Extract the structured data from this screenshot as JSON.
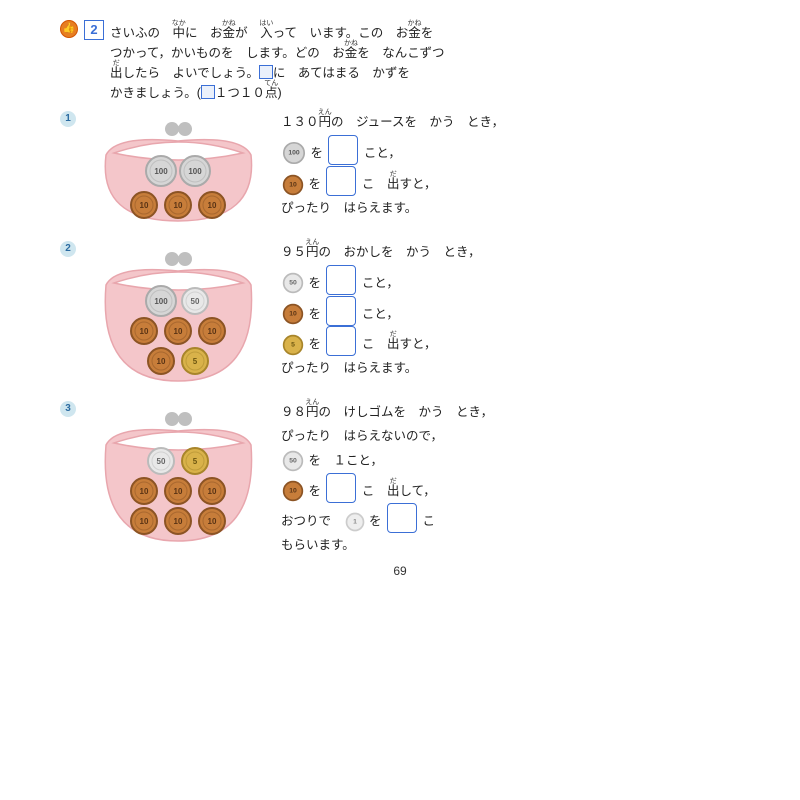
{
  "question_number": "2",
  "intro_lines": [
    "さいふの　中に　お金が　入って　います。この　お金を",
    "つかって，かいものを　します。どの　お金を　なんこずつ",
    "出したら　よいでしょう。□に　あてはまる　かずを",
    "かきましょう。(□１つ１０点)"
  ],
  "ruby": {
    "naka": "なか",
    "kane": "かね",
    "hai": "はい",
    "da": "だ",
    "en": "えん",
    "ten": "てん"
  },
  "colors": {
    "accent": "#3b6fd6",
    "purse": "#f4c6ca",
    "purse_dark": "#e8a6ad",
    "clasp": "#bfbfbf",
    "c100_bg": "#d6d6d6",
    "c100_b": "#aaaaaa",
    "c50_bg": "#e8e8e8",
    "c50_b": "#bbbbbb",
    "c10_bg": "#c77d3a",
    "c10_b": "#8c5424",
    "c5_bg": "#d9b24a",
    "c5_b": "#a8852a",
    "c1_bg": "#eeeeee",
    "c1_b": "#cccccc",
    "badge_bg": "#cfe6ef",
    "badge_fg": "#2a6aa0",
    "thumb": "#e67e22"
  },
  "problems": [
    {
      "num": "1",
      "purse_coins_top": [
        "100",
        "100"
      ],
      "purse_coins_bot": [
        "10",
        "10",
        "10"
      ],
      "title": "１３０円の　ジュースを　かう　とき，",
      "lines": [
        {
          "coin": "100",
          "pre": "",
          "mid": "を",
          "box": true,
          "post": "こと，"
        },
        {
          "coin": "10",
          "pre": "",
          "mid": "を",
          "box": true,
          "post": "こ　出すと，"
        },
        {
          "plain": "ぴったり　はらえます。"
        }
      ]
    },
    {
      "num": "2",
      "purse_coins_top": [
        "100",
        "50"
      ],
      "purse_coins_mid": [
        "10",
        "10",
        "10"
      ],
      "purse_coins_bot": [
        "10",
        "5"
      ],
      "title": "９５円の　おかしを　かう　とき，",
      "lines": [
        {
          "coin": "50",
          "mid": "を",
          "box": true,
          "post": "こと，"
        },
        {
          "coin": "10",
          "mid": "を",
          "box": true,
          "post": "こと，"
        },
        {
          "coin": "5",
          "mid": "を",
          "box": true,
          "post": "こ　出すと，"
        },
        {
          "plain": "ぴったり　はらえます。"
        }
      ]
    },
    {
      "num": "3",
      "purse_coins_top": [
        "50",
        "5"
      ],
      "purse_coins_mid": [
        "10",
        "10",
        "10"
      ],
      "purse_coins_bot": [
        "10",
        "10",
        "10"
      ],
      "title": "９８円の　けしゴムを　かう　とき，",
      "pre_line": "ぴったり　はらえないので，",
      "lines": [
        {
          "coin": "50",
          "mid": "を　１こと，",
          "box": false,
          "post": ""
        },
        {
          "coin": "10",
          "mid": "を",
          "box": true,
          "post": "こ　出して，"
        },
        {
          "plain_pre": "おつりで",
          "coin": "1",
          "mid": "を",
          "box": true,
          "post": "こ"
        },
        {
          "plain": "もらいます。"
        }
      ]
    }
  ],
  "page_number": "69"
}
